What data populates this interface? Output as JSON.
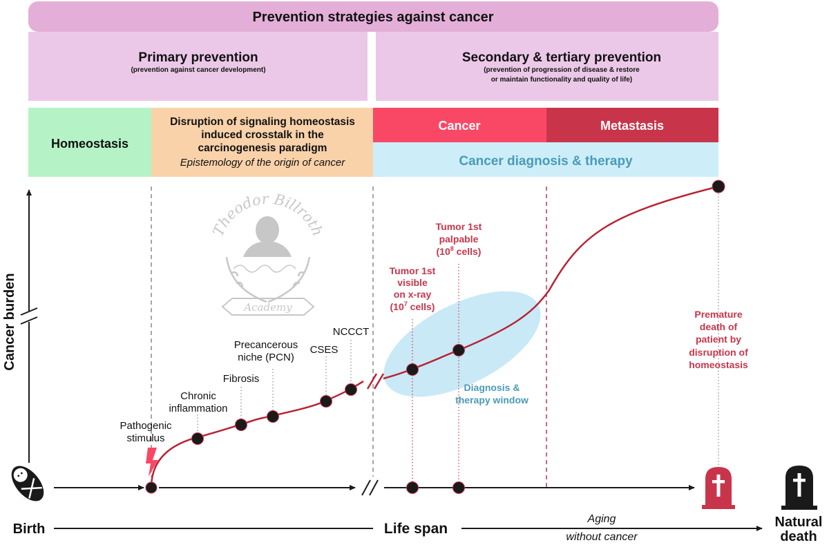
{
  "colors": {
    "top_banner": "#e3aed7",
    "prevention_panel": "#ecc8e8",
    "homeostasis": "#b5f3c6",
    "disruption": "#f9d2aa",
    "cancer": "#f94866",
    "metastasis": "#c8354b",
    "diagnosis_band": "#cdeef9",
    "diagnosis_text": "#4a9ab8",
    "red_curve": "#b72335",
    "red_label": "#c8354b",
    "ellipse": "#bfe5f6",
    "dot": "#1a1a1a",
    "watermark": "#9a9a9a"
  },
  "header": {
    "title": "Prevention strategies against cancer",
    "primary": {
      "title": "Primary prevention",
      "subtitle": "(prevention against cancer development)"
    },
    "secondary": {
      "title": "Secondary & tertiary prevention",
      "subtitle_line1": "(prevention of progression of disease & restore",
      "subtitle_line2": "or maintain functionality and quality of life)"
    }
  },
  "stages": {
    "homeostasis": "Homeostasis",
    "disruption_line1": "Disruption of signaling homeostasis",
    "disruption_line2": "induced crosstalk in the",
    "disruption_line3": "carcinogenesis paradigm",
    "disruption_line4": "Epistemology of the origin of cancer",
    "cancer": "Cancer",
    "metastasis": "Metastasis",
    "diagnosis": "Cancer diagnosis & therapy"
  },
  "axes": {
    "y_label": "Cancer burden",
    "birth": "Birth",
    "life_span": "Life span",
    "aging_line1": "Aging",
    "aging_line2": "without cancer",
    "natural_death_line1": "Natural",
    "natural_death_line2": "death"
  },
  "events": {
    "pathogenic_line1": "Pathogenic",
    "pathogenic_line2": "stimulus",
    "chronic_line1": "Chronic",
    "chronic_line2": "inflammation",
    "fibrosis": "Fibrosis",
    "pcn_line1": "Precancerous",
    "pcn_line2": "niche (PCN)",
    "cses": "CSES",
    "ncccT": "NCCCT",
    "xray_line1": "Tumor 1st",
    "xray_line2": "visible",
    "xray_line3": "on x-ray",
    "xray_line4_pre": "(10",
    "xray_line4_sup": "7",
    "xray_line4_post": " cells)",
    "palpable_line1": "Tumor 1st",
    "palpable_line2": "palpable",
    "palpable_line3_pre": "(10",
    "palpable_line3_sup": "8",
    "palpable_line3_post": " cells)",
    "window_line1": "Diagnosis &",
    "window_line2": "therapy window",
    "premature_line1": "Premature",
    "premature_line2": "death of",
    "premature_line3": "patient by",
    "premature_line4": "disruption of",
    "premature_line5": "homeostasis"
  },
  "watermark": {
    "name": "Theodor Billroth",
    "academy": "Academy"
  }
}
